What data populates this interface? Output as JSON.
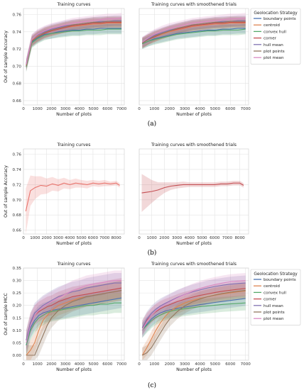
{
  "figure": {
    "panel_labels": [
      "(a)",
      "(b)",
      "(c)"
    ]
  },
  "chart_data": [
    {
      "type": "line",
      "title": "Training curves",
      "xlabel": "Number of plots",
      "ylabel": "Out of sample Accuracy",
      "xlim": [
        0,
        7200
      ],
      "ylim": [
        0.655,
        0.767
      ],
      "xticks": [
        0,
        1000,
        2000,
        3000,
        4000,
        5000,
        6000,
        7000
      ],
      "yticks": [
        0.66,
        0.68,
        0.7,
        0.72,
        0.74,
        0.76
      ],
      "grid": true,
      "x": [
        200,
        600,
        1000,
        1500,
        2000,
        2500,
        3000,
        3500,
        4000,
        4500,
        5000,
        5500,
        6000,
        6500,
        7000
      ],
      "series": [
        {
          "name": "boundary points",
          "color": "#4c72b0",
          "values": [
            0.7,
            0.728,
            0.733,
            0.737,
            0.738,
            0.74,
            0.741,
            0.742,
            0.742,
            0.743,
            0.743,
            0.744,
            0.744,
            0.744,
            0.744
          ]
        },
        {
          "name": "centroid",
          "color": "#dd8452",
          "values": [
            0.702,
            0.73,
            0.735,
            0.739,
            0.741,
            0.743,
            0.745,
            0.746,
            0.747,
            0.748,
            0.749,
            0.749,
            0.75,
            0.75,
            0.75
          ]
        },
        {
          "name": "convex hull",
          "color": "#55a868",
          "values": [
            0.699,
            0.727,
            0.732,
            0.736,
            0.738,
            0.739,
            0.74,
            0.741,
            0.741,
            0.742,
            0.742,
            0.742,
            0.743,
            0.743,
            0.743
          ]
        },
        {
          "name": "corner",
          "color": "#c44e52",
          "values": [
            0.701,
            0.729,
            0.734,
            0.738,
            0.741,
            0.743,
            0.745,
            0.747,
            0.748,
            0.749,
            0.75,
            0.75,
            0.751,
            0.751,
            0.751
          ]
        },
        {
          "name": "hull mean",
          "color": "#8172b3",
          "values": [
            0.703,
            0.731,
            0.736,
            0.74,
            0.743,
            0.745,
            0.747,
            0.748,
            0.749,
            0.75,
            0.751,
            0.752,
            0.752,
            0.753,
            0.753
          ]
        },
        {
          "name": "plot points",
          "color": "#937860",
          "values": [
            0.7,
            0.729,
            0.734,
            0.739,
            0.742,
            0.744,
            0.746,
            0.748,
            0.749,
            0.75,
            0.751,
            0.751,
            0.752,
            0.752,
            0.752
          ]
        },
        {
          "name": "plot mean",
          "color": "#da8bc3",
          "values": [
            0.702,
            0.731,
            0.737,
            0.741,
            0.744,
            0.746,
            0.748,
            0.75,
            0.751,
            0.752,
            0.753,
            0.754,
            0.755,
            0.755,
            0.756
          ]
        }
      ]
    },
    {
      "type": "line",
      "title": "Training curves with smoothened trials",
      "xlabel": "Number of plots",
      "ylabel": "",
      "xlim": [
        0,
        7200
      ],
      "ylim": [
        0.655,
        0.767
      ],
      "xticks": [
        0,
        1000,
        2000,
        3000,
        4000,
        5000,
        6000,
        7000
      ],
      "yticks": [],
      "grid": true,
      "legend": {
        "title": "Geolocation Strategy",
        "placement": "outside-right"
      },
      "x": [
        200,
        600,
        1000,
        1500,
        2000,
        2500,
        3000,
        3500,
        4000,
        4500,
        5000,
        5500,
        6000,
        6500,
        7000
      ],
      "series": [
        {
          "name": "boundary points",
          "color": "#4c72b0",
          "values": [
            0.726,
            0.729,
            0.732,
            0.734,
            0.736,
            0.738,
            0.739,
            0.74,
            0.741,
            0.742,
            0.742,
            0.743,
            0.743,
            0.744,
            0.744
          ]
        },
        {
          "name": "centroid",
          "color": "#dd8452",
          "values": [
            0.727,
            0.731,
            0.734,
            0.737,
            0.74,
            0.742,
            0.744,
            0.746,
            0.747,
            0.748,
            0.749,
            0.749,
            0.75,
            0.75,
            0.75
          ]
        },
        {
          "name": "convex hull",
          "color": "#55a868",
          "values": [
            0.726,
            0.729,
            0.731,
            0.733,
            0.735,
            0.737,
            0.738,
            0.739,
            0.74,
            0.741,
            0.741,
            0.742,
            0.742,
            0.742,
            0.743
          ]
        },
        {
          "name": "corner",
          "color": "#c44e52",
          "values": [
            0.727,
            0.731,
            0.734,
            0.738,
            0.741,
            0.743,
            0.745,
            0.747,
            0.748,
            0.749,
            0.75,
            0.75,
            0.751,
            0.751,
            0.751
          ]
        },
        {
          "name": "hull mean",
          "color": "#8172b3",
          "values": [
            0.728,
            0.732,
            0.736,
            0.739,
            0.742,
            0.744,
            0.746,
            0.748,
            0.749,
            0.75,
            0.751,
            0.752,
            0.752,
            0.753,
            0.753
          ]
        },
        {
          "name": "plot points",
          "color": "#937860",
          "values": [
            0.727,
            0.731,
            0.735,
            0.738,
            0.741,
            0.744,
            0.746,
            0.748,
            0.749,
            0.75,
            0.751,
            0.751,
            0.752,
            0.752,
            0.752
          ]
        },
        {
          "name": "plot mean",
          "color": "#da8bc3",
          "values": [
            0.728,
            0.733,
            0.737,
            0.741,
            0.744,
            0.746,
            0.748,
            0.75,
            0.751,
            0.752,
            0.753,
            0.754,
            0.755,
            0.755,
            0.756
          ]
        }
      ]
    },
    {
      "type": "line",
      "title": "Training curves",
      "xlabel": "Number of plots",
      "ylabel": "Out of sample Accuracy",
      "xlim": [
        0,
        8700
      ],
      "ylim": [
        0.655,
        0.767
      ],
      "xticks": [
        0,
        1000,
        2000,
        3000,
        4000,
        5000,
        6000,
        7000,
        8000
      ],
      "yticks": [
        0.66,
        0.68,
        0.7,
        0.72,
        0.74,
        0.76
      ],
      "grid": true,
      "x": [
        200,
        600,
        1000,
        1500,
        2000,
        2500,
        3000,
        3500,
        4000,
        4500,
        5000,
        5500,
        6000,
        6500,
        7000,
        7500,
        8000,
        8300
      ],
      "series": [
        {
          "name": "",
          "color": "#e8736c",
          "values": [
            0.685,
            0.712,
            0.716,
            0.719,
            0.718,
            0.721,
            0.719,
            0.722,
            0.72,
            0.722,
            0.721,
            0.72,
            0.722,
            0.721,
            0.722,
            0.721,
            0.722,
            0.719
          ],
          "band": [
            0.03,
            0.02,
            0.015,
            0.012,
            0.01,
            0.009,
            0.008,
            0.007,
            0.006,
            0.006,
            0.005,
            0.005,
            0.004,
            0.004,
            0.004,
            0.003,
            0.003,
            0.003
          ]
        }
      ]
    },
    {
      "type": "line",
      "title": "Training curves with smoothened trials",
      "xlabel": "Number of plots",
      "ylabel": "",
      "xlim": [
        0,
        8700
      ],
      "ylim": [
        0.655,
        0.767
      ],
      "xticks": [
        0,
        1000,
        2000,
        3000,
        4000,
        5000,
        6000,
        7000,
        8000
      ],
      "yticks": [],
      "grid": true,
      "x": [
        200,
        600,
        1000,
        1500,
        2000,
        2500,
        3000,
        3500,
        4000,
        4500,
        5000,
        5500,
        6000,
        6500,
        7000,
        7500,
        8000,
        8300
      ],
      "series": [
        {
          "name": "",
          "color": "#c44e52",
          "values": [
            0.709,
            0.71,
            0.711,
            0.713,
            0.716,
            0.718,
            0.719,
            0.72,
            0.72,
            0.72,
            0.72,
            0.72,
            0.72,
            0.721,
            0.721,
            0.722,
            0.722,
            0.719
          ],
          "band": [
            0.025,
            0.02,
            0.015,
            0.01,
            0.007,
            0.005,
            0.004,
            0.004,
            0.003,
            0.003,
            0.003,
            0.003,
            0.003,
            0.003,
            0.003,
            0.003,
            0.003,
            0.003
          ]
        }
      ]
    },
    {
      "type": "line",
      "title": "Training curves",
      "xlabel": "Number of plots",
      "ylabel": "Out of sample MCC",
      "xlim": [
        0,
        7200
      ],
      "ylim": [
        -0.02,
        0.35
      ],
      "xticks": [
        0,
        1000,
        2000,
        3000,
        4000,
        5000,
        6000,
        7000
      ],
      "yticks": [
        0.0,
        0.05,
        0.1,
        0.15,
        0.2,
        0.25,
        0.3,
        0.35
      ],
      "grid": true,
      "x": [
        200,
        500,
        800,
        1100,
        1400,
        1700,
        2000,
        2500,
        3000,
        3500,
        4000,
        4500,
        5000,
        5500,
        6000,
        6500,
        7000
      ],
      "series": [
        {
          "name": "boundary points",
          "color": "#4c72b0",
          "values": [
            0.04,
            0.11,
            0.14,
            0.16,
            0.17,
            0.175,
            0.18,
            0.185,
            0.19,
            0.195,
            0.2,
            0.205,
            0.21,
            0.215,
            0.22,
            0.225,
            0.23
          ]
        },
        {
          "name": "centroid",
          "color": "#dd8452",
          "values": [
            0.0,
            0.02,
            0.05,
            0.1,
            0.14,
            0.16,
            0.18,
            0.2,
            0.21,
            0.22,
            0.23,
            0.235,
            0.24,
            0.245,
            0.25,
            0.255,
            0.26
          ]
        },
        {
          "name": "convex hull",
          "color": "#55a868",
          "values": [
            0.04,
            0.1,
            0.13,
            0.15,
            0.16,
            0.17,
            0.175,
            0.18,
            0.185,
            0.19,
            0.195,
            0.2,
            0.2,
            0.205,
            0.205,
            0.21,
            0.21
          ]
        },
        {
          "name": "corner",
          "color": "#c44e52",
          "values": [
            0.06,
            0.13,
            0.16,
            0.175,
            0.185,
            0.195,
            0.2,
            0.215,
            0.225,
            0.235,
            0.24,
            0.245,
            0.25,
            0.255,
            0.26,
            0.265,
            0.27
          ]
        },
        {
          "name": "hull mean",
          "color": "#8172b3",
          "values": [
            0.06,
            0.13,
            0.17,
            0.185,
            0.2,
            0.21,
            0.22,
            0.235,
            0.245,
            0.255,
            0.26,
            0.27,
            0.275,
            0.28,
            0.285,
            0.29,
            0.29
          ]
        },
        {
          "name": "plot points",
          "color": "#937860",
          "values": [
            0.0,
            0.0,
            0.0,
            0.04,
            0.08,
            0.12,
            0.15,
            0.18,
            0.2,
            0.215,
            0.225,
            0.235,
            0.24,
            0.245,
            0.25,
            0.255,
            0.26
          ]
        },
        {
          "name": "plot mean",
          "color": "#da8bc3",
          "values": [
            0.05,
            0.12,
            0.16,
            0.18,
            0.195,
            0.205,
            0.215,
            0.23,
            0.245,
            0.26,
            0.27,
            0.28,
            0.285,
            0.29,
            0.295,
            0.3,
            0.3
          ]
        }
      ]
    },
    {
      "type": "line",
      "title": "Training curves with smoothened trials",
      "xlabel": "Number of plots",
      "ylabel": "",
      "xlim": [
        0,
        7200
      ],
      "ylim": [
        -0.02,
        0.35
      ],
      "xticks": [
        0,
        1000,
        2000,
        3000,
        4000,
        5000,
        6000,
        7000
      ],
      "yticks": [],
      "grid": true,
      "legend": {
        "title": "Geolocation Strategy",
        "placement": "top-right"
      },
      "x": [
        200,
        500,
        800,
        1100,
        1400,
        1700,
        2000,
        2500,
        3000,
        3500,
        4000,
        4500,
        5000,
        5500,
        6000,
        6500,
        7000
      ],
      "series": [
        {
          "name": "boundary points",
          "color": "#4c72b0",
          "values": [
            0.1,
            0.125,
            0.145,
            0.16,
            0.17,
            0.177,
            0.182,
            0.188,
            0.193,
            0.198,
            0.203,
            0.207,
            0.212,
            0.216,
            0.22,
            0.224,
            0.228
          ]
        },
        {
          "name": "centroid",
          "color": "#dd8452",
          "values": [
            0.0,
            0.03,
            0.065,
            0.1,
            0.13,
            0.155,
            0.175,
            0.195,
            0.21,
            0.22,
            0.228,
            0.235,
            0.241,
            0.246,
            0.25,
            0.255,
            0.258
          ]
        },
        {
          "name": "convex hull",
          "color": "#55a868",
          "values": [
            0.1,
            0.12,
            0.138,
            0.152,
            0.162,
            0.17,
            0.176,
            0.182,
            0.187,
            0.191,
            0.195,
            0.198,
            0.201,
            0.204,
            0.206,
            0.208,
            0.21
          ]
        },
        {
          "name": "corner",
          "color": "#c44e52",
          "values": [
            0.11,
            0.14,
            0.16,
            0.175,
            0.187,
            0.196,
            0.203,
            0.215,
            0.225,
            0.233,
            0.24,
            0.246,
            0.252,
            0.257,
            0.261,
            0.265,
            0.268
          ]
        },
        {
          "name": "hull mean",
          "color": "#8172b3",
          "values": [
            0.11,
            0.145,
            0.168,
            0.185,
            0.198,
            0.208,
            0.217,
            0.232,
            0.244,
            0.254,
            0.262,
            0.27,
            0.276,
            0.281,
            0.285,
            0.288,
            0.29
          ]
        },
        {
          "name": "plot points",
          "color": "#937860",
          "values": [
            0.0,
            0.01,
            0.03,
            0.06,
            0.09,
            0.12,
            0.145,
            0.175,
            0.198,
            0.214,
            0.226,
            0.235,
            0.242,
            0.248,
            0.253,
            0.257,
            0.26
          ]
        },
        {
          "name": "plot mean",
          "color": "#da8bc3",
          "values": [
            0.1,
            0.135,
            0.16,
            0.178,
            0.192,
            0.204,
            0.214,
            0.23,
            0.244,
            0.257,
            0.268,
            0.277,
            0.284,
            0.29,
            0.295,
            0.298,
            0.3
          ]
        }
      ]
    }
  ]
}
